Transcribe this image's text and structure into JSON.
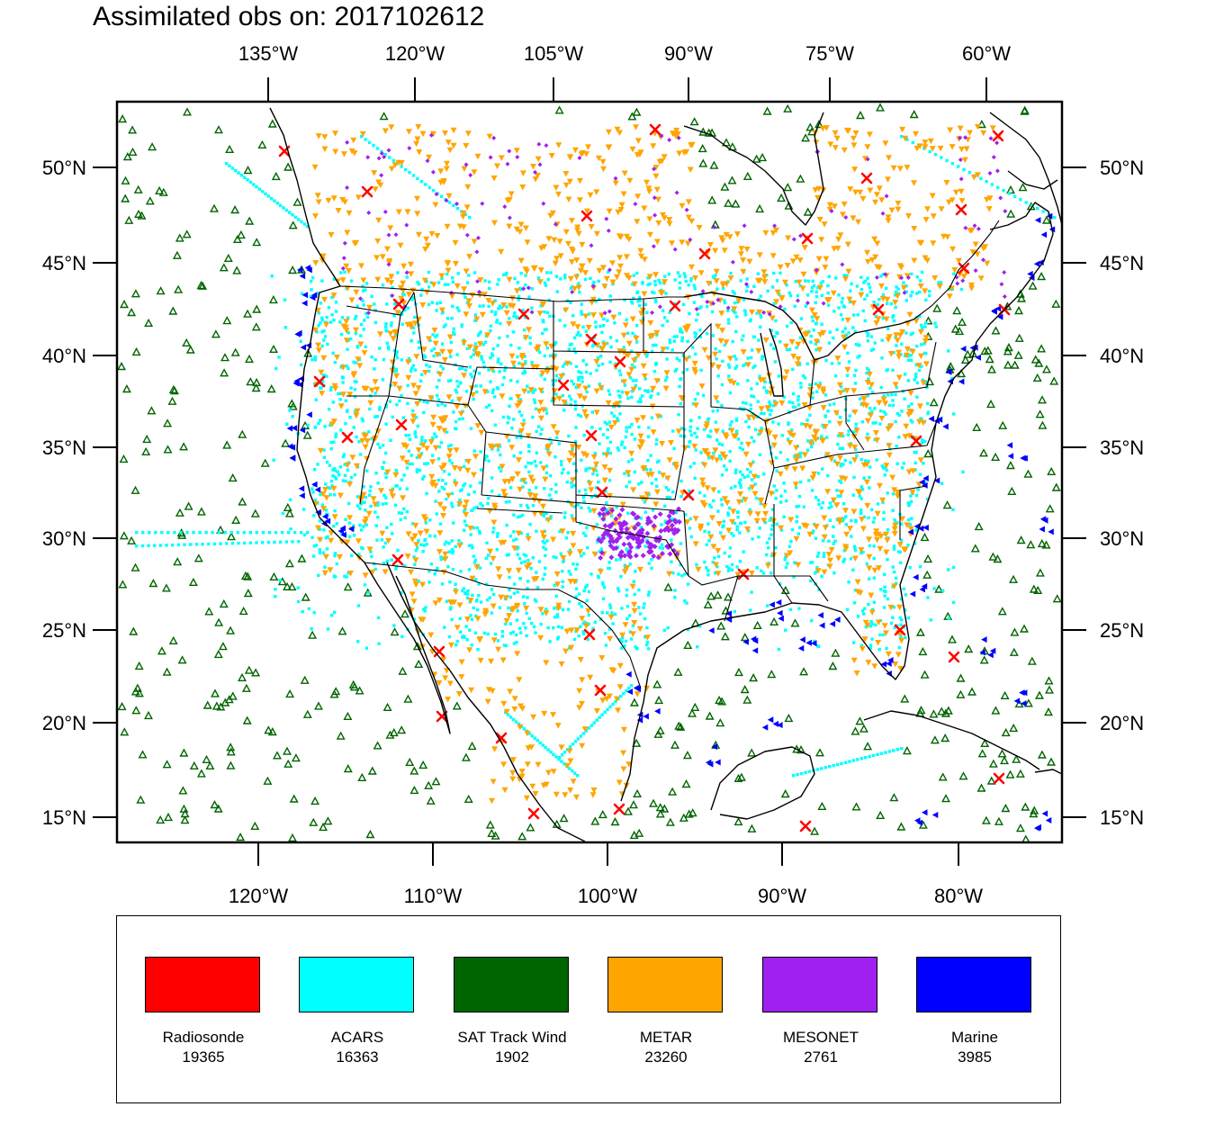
{
  "title": "Assimilated obs on: 2017102612",
  "top_ticks": [
    "135°W",
    "120°W",
    "105°W",
    "90°W",
    "75°W",
    "60°W"
  ],
  "bottom_ticks": [
    "120°W",
    "110°W",
    "100°W",
    "90°W",
    "80°W"
  ],
  "left_ticks": [
    "50°N",
    "45°N",
    "40°N",
    "35°N",
    "30°N",
    "25°N",
    "20°N",
    "15°N"
  ],
  "right_ticks": [
    "50°N",
    "45°N",
    "40°N",
    "35°N",
    "30°N",
    "25°N",
    "20°N",
    "15°N"
  ],
  "legend": [
    {
      "label": "Radiosonde",
      "count": "19365",
      "color": "#ff0000"
    },
    {
      "label": "ACARS",
      "count": "16363",
      "color": "#00ffff"
    },
    {
      "label": "SAT Track Wind",
      "count": "1902",
      "color": "#006400"
    },
    {
      "label": "METAR",
      "count": "23260",
      "color": "#ffa500"
    },
    {
      "label": "MESONET",
      "count": "2761",
      "color": "#a020f0"
    },
    {
      "label": "Marine",
      "count": "3985",
      "color": "#0000ff"
    }
  ],
  "colors": {
    "radiosonde": "#ff0000",
    "acars": "#00ffff",
    "sat_track_wind": "#006400",
    "metar": "#ffa500",
    "mesonet": "#a020f0",
    "marine": "#0000ff",
    "coastline": "#000000"
  }
}
